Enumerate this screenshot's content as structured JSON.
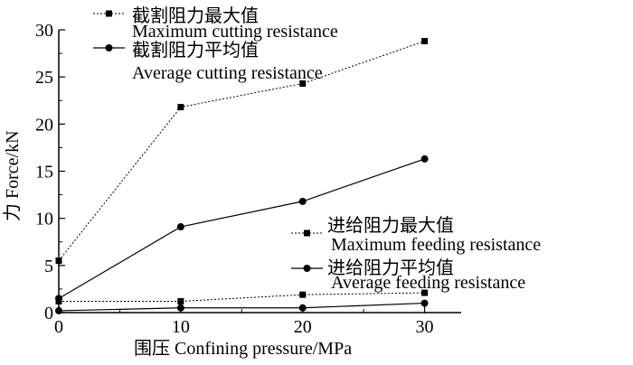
{
  "chart_data": {
    "type": "line",
    "xlabel": "围压 Confining pressure/MPa",
    "ylabel": "力 Force/kN",
    "x": [
      0,
      10,
      20,
      30
    ],
    "xticks": [
      "0",
      "10",
      "20",
      "30"
    ],
    "yticks": [
      "0",
      "5",
      "10",
      "15",
      "20",
      "25",
      "30"
    ],
    "xlim": [
      0,
      33
    ],
    "ylim": [
      0,
      30
    ],
    "grid": false,
    "series": [
      {
        "name_cn": "截割阻力最大值",
        "name_en": "Maximum cutting resistance",
        "marker": "square",
        "line": "dotted",
        "values": [
          5.5,
          21.8,
          24.3,
          28.8
        ]
      },
      {
        "name_cn": "截割阻力平均值",
        "name_en": "Average cutting resistance",
        "marker": "circle",
        "line": "solid",
        "values": [
          1.5,
          9.1,
          11.8,
          16.3
        ]
      },
      {
        "name_cn": "进给阻力最大值",
        "name_en": "Maximum feeding resistance",
        "marker": "square",
        "line": "dotted",
        "values": [
          1.2,
          1.2,
          1.9,
          2.1
        ]
      },
      {
        "name_cn": "进给阻力平均值",
        "name_en": "Average feeding resistance",
        "marker": "circle",
        "line": "solid",
        "values": [
          0.2,
          0.5,
          0.5,
          1.0
        ]
      }
    ]
  }
}
